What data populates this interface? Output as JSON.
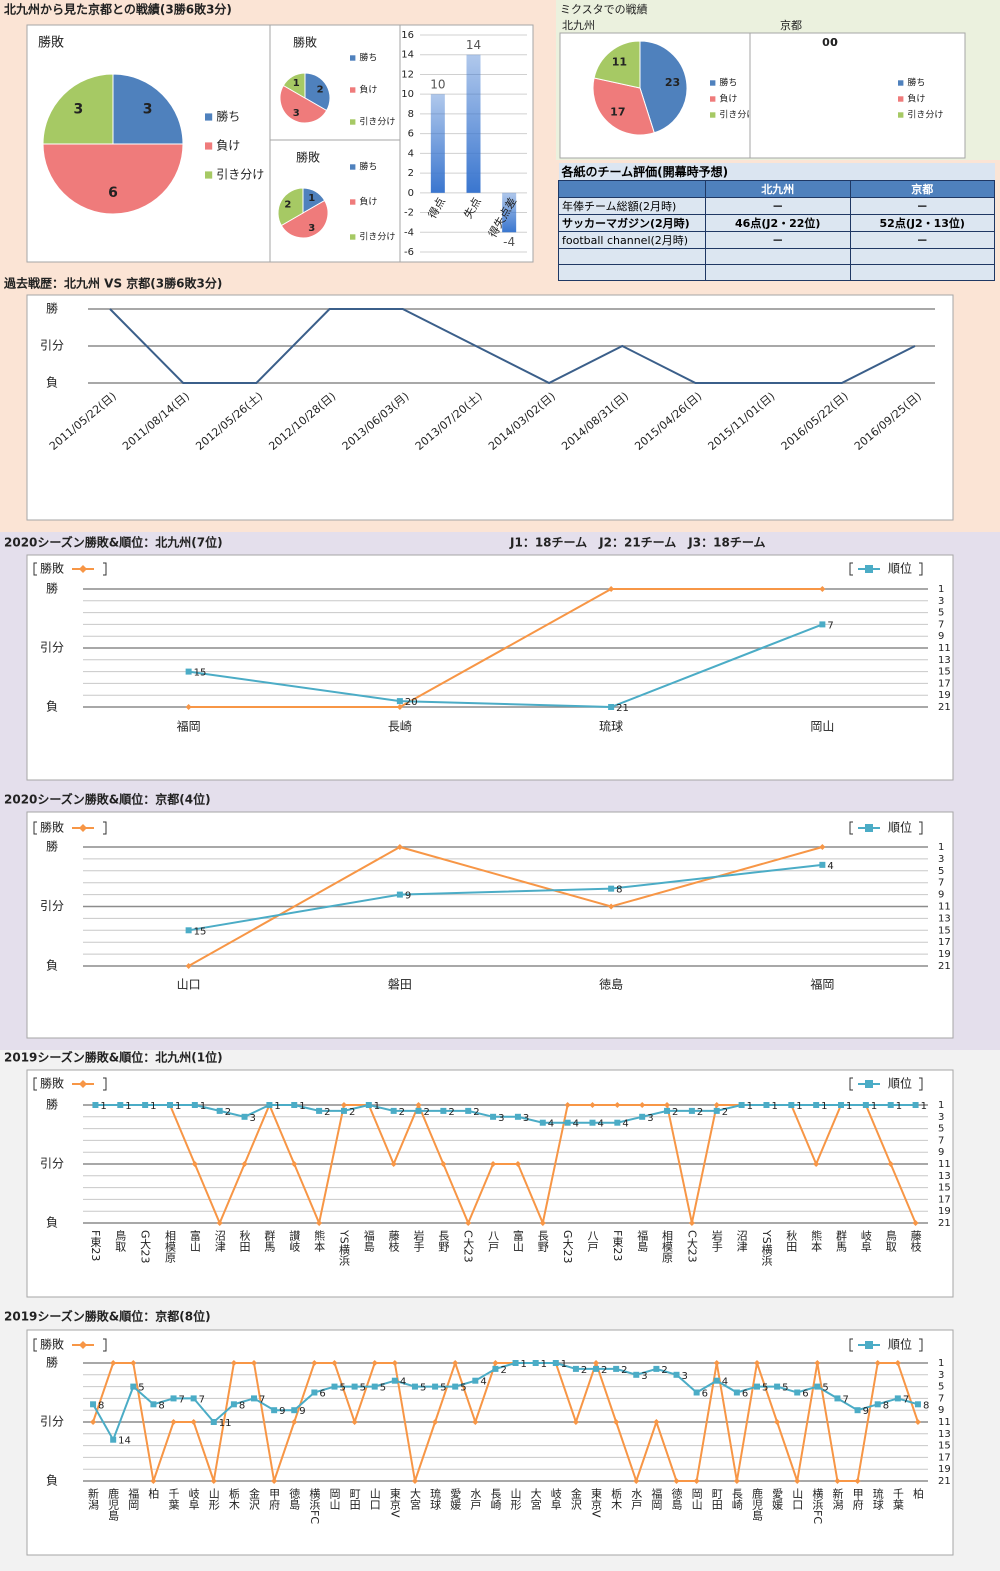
{
  "headings": {
    "record_title": "北九州から見た京都との戦績(3勝6敗3分)",
    "mixta_title": "ミクスタでの戦績",
    "mixta_home": "北九州",
    "mixta_away": "京都"
  },
  "table": {
    "title": "各紙のチーム評価(開幕時予想)",
    "columns": [
      "北九州",
      "京都"
    ],
    "rows": [
      {
        "label": "年俸チーム総額(2月時)",
        "cells": [
          "－",
          "－"
        ]
      },
      {
        "label": "サッカーマガジン(2月時)",
        "cells": [
          "46点(J2・22位)",
          "52点(J2・13位)"
        ]
      },
      {
        "label": "football channel(2月時)",
        "cells": [
          "－",
          "－"
        ]
      }
    ]
  },
  "chart_data": [
    {
      "type": "pie",
      "title": "勝敗",
      "categories": [
        "勝ち",
        "負け",
        "引き分け"
      ],
      "values": [
        3,
        6,
        3
      ],
      "colors": [
        "#4f81bd",
        "#ef7b7b",
        "#a6c964"
      ]
    },
    {
      "type": "pie",
      "title": "勝敗",
      "categories": [
        "勝ち",
        "負け",
        "引き分け"
      ],
      "values": [
        2,
        3,
        1
      ],
      "colors": [
        "#4f81bd",
        "#ef7b7b",
        "#a6c964"
      ]
    },
    {
      "type": "pie",
      "title": "勝敗",
      "categories": [
        "勝ち",
        "負け",
        "引き分け"
      ],
      "values": [
        1,
        3,
        2
      ],
      "colors": [
        "#4f81bd",
        "#ef7b7b",
        "#a6c964"
      ]
    },
    {
      "type": "bar",
      "categories": [
        "得点",
        "失点",
        "得失点差"
      ],
      "values": [
        10,
        14,
        -4
      ],
      "color": "#3a76cf",
      "ylim": [
        -6,
        16
      ],
      "yticks": [
        -6,
        -4,
        -2,
        0,
        2,
        4,
        6,
        8,
        10,
        12,
        14,
        16
      ],
      "grid": true
    },
    {
      "type": "pie",
      "categories": [
        "勝ち",
        "負け",
        "引き分け"
      ],
      "values": [
        23,
        17,
        11
      ],
      "colors": [
        "#4f81bd",
        "#ef7b7b",
        "#a6c964"
      ]
    },
    {
      "type": "pie",
      "categories": [
        "勝ち",
        "負け",
        "引き分け"
      ],
      "values": [
        0,
        0,
        0
      ],
      "colors": [
        "#4f81bd",
        "#ef7b7b",
        "#a6c964"
      ]
    },
    {
      "type": "line",
      "title": "過去戦歴：北九州 VS 京都(3勝6敗3分)",
      "categories": [
        "2011/05/22(日)",
        "2011/08/14(日)",
        "2012/05/26(土)",
        "2012/10/28(日)",
        "2013/06/03(月)",
        "2013/07/20(土)",
        "2014/03/02(日)",
        "2014/08/31(日)",
        "2015/04/26(日)",
        "2015/11/01(日)",
        "2016/05/22(日)",
        "2016/09/25(日)"
      ],
      "values": [
        1,
        -1,
        -1,
        1,
        1,
        0,
        -1,
        0,
        -1,
        -1,
        -1,
        0
      ],
      "color": "#3b5f8a",
      "ylim": [
        -1,
        1
      ],
      "yticks": [
        {
          "value": -1,
          "label": "負"
        },
        {
          "value": 0,
          "label": "引分"
        },
        {
          "value": 1,
          "label": "勝"
        }
      ],
      "grid": true
    },
    {
      "type": "line",
      "title": "2020シーズン勝敗&順位：北九州(7位)",
      "annotation": "J1：18チーム　J2：21チーム　J3：18チーム",
      "categories": [
        "福岡",
        "長崎",
        "琉球",
        "岡山"
      ],
      "series": [
        {
          "name": "勝敗",
          "color": "#f79646",
          "marker": "diamond",
          "values": [
            -1,
            -1,
            1,
            1
          ]
        },
        {
          "name": "順位",
          "color": "#4bacc6",
          "marker": "square",
          "axis": "y2",
          "show_labels": true,
          "values": [
            15,
            20,
            21,
            7
          ]
        }
      ],
      "ylim": [
        -1,
        1
      ],
      "yticks": [
        {
          "value": -1,
          "label": "負"
        },
        {
          "value": 0,
          "label": "引分"
        },
        {
          "value": 1,
          "label": "勝"
        }
      ],
      "y2lim": [
        1,
        21
      ],
      "y2_inverted": true,
      "y2ticks": [
        1,
        3,
        5,
        7,
        9,
        11,
        13,
        15,
        17,
        19,
        21
      ],
      "grid": true
    },
    {
      "type": "line",
      "title": "2020シーズン勝敗&順位：京都(4位)",
      "categories": [
        "山口",
        "磐田",
        "徳島",
        "福岡"
      ],
      "series": [
        {
          "name": "勝敗",
          "color": "#f79646",
          "marker": "diamond",
          "values": [
            -1,
            1,
            0,
            1
          ]
        },
        {
          "name": "順位",
          "color": "#4bacc6",
          "marker": "square",
          "axis": "y2",
          "show_labels": true,
          "values": [
            15,
            9,
            8,
            4
          ]
        }
      ],
      "ylim": [
        -1,
        1
      ],
      "yticks": [
        {
          "value": -1,
          "label": "負"
        },
        {
          "value": 0,
          "label": "引分"
        },
        {
          "value": 1,
          "label": "勝"
        }
      ],
      "y2lim": [
        1,
        21
      ],
      "y2_inverted": true,
      "y2ticks": [
        1,
        3,
        5,
        7,
        9,
        11,
        13,
        15,
        17,
        19,
        21
      ],
      "grid": true
    },
    {
      "type": "line",
      "title": "2019シーズン勝敗&順位：北九州(1位)",
      "categories": [
        "F東23",
        "鳥取",
        "G大23",
        "相模原",
        "富山",
        "沼津",
        "秋田",
        "群馬",
        "讃岐",
        "熊本",
        "YS横浜",
        "福島",
        "藤枝",
        "岩手",
        "長野",
        "C大23",
        "八戸",
        "富山",
        "長野",
        "G大23",
        "八戸",
        "F東23",
        "福島",
        "相模原",
        "C大23",
        "岩手",
        "沼津",
        "YS横浜",
        "秋田",
        "熊本",
        "群馬",
        "岐阜",
        "鳥取",
        "藤枝"
      ],
      "series": [
        {
          "name": "勝敗",
          "color": "#f79646",
          "marker": "diamond",
          "values": [
            1,
            1,
            1,
            1,
            0,
            -1,
            0,
            1,
            0,
            -1,
            1,
            1,
            0,
            1,
            0,
            -1,
            0,
            0,
            -1,
            1,
            1,
            1,
            1,
            1,
            -1,
            1,
            1,
            1,
            1,
            0,
            1,
            1,
            0,
            -1
          ]
        },
        {
          "name": "順位",
          "color": "#4bacc6",
          "marker": "square",
          "axis": "y2",
          "show_labels": true,
          "values": [
            1,
            1,
            1,
            1,
            1,
            2,
            3,
            1,
            1,
            2,
            2,
            1,
            2,
            2,
            2,
            2,
            3,
            3,
            4,
            4,
            4,
            4,
            3,
            2,
            2,
            2,
            1,
            1,
            1,
            1,
            1,
            1,
            1,
            1
          ]
        }
      ],
      "ylim": [
        -1,
        1
      ],
      "yticks": [
        {
          "value": -1,
          "label": "負"
        },
        {
          "value": 0,
          "label": "引分"
        },
        {
          "value": 1,
          "label": "勝"
        }
      ],
      "y2lim": [
        1,
        21
      ],
      "y2_inverted": true,
      "y2ticks": [
        1,
        3,
        5,
        7,
        9,
        11,
        13,
        15,
        17,
        19,
        21
      ],
      "grid": true
    },
    {
      "type": "line",
      "title": "2019シーズン勝敗&順位：京都(8位)",
      "categories": [
        "新潟",
        "鹿児島",
        "福岡",
        "柏",
        "千葉",
        "岐阜",
        "山形",
        "栃木",
        "金沢",
        "甲府",
        "徳島",
        "横浜FC",
        "岡山",
        "町田",
        "山口",
        "東京V",
        "大宮",
        "琉球",
        "愛媛",
        "水戸",
        "長崎",
        "山形",
        "大宮",
        "岐阜",
        "金沢",
        "東京V",
        "栃木",
        "水戸",
        "福岡",
        "徳島",
        "岡山",
        "町田",
        "長崎",
        "鹿児島",
        "愛媛",
        "山口",
        "横浜FC",
        "新潟",
        "甲府",
        "琉球",
        "千葉",
        "柏"
      ],
      "series": [
        {
          "name": "勝敗",
          "color": "#f79646",
          "marker": "diamond",
          "values": [
            0,
            1,
            1,
            -1,
            0,
            0,
            -1,
            1,
            1,
            -1,
            0,
            1,
            1,
            0,
            1,
            1,
            -1,
            0,
            1,
            0,
            1,
            1,
            1,
            1,
            0,
            1,
            0,
            -1,
            0,
            -1,
            -1,
            1,
            -1,
            1,
            0,
            -1,
            1,
            -1,
            -1,
            1,
            1,
            0
          ]
        },
        {
          "name": "順位",
          "color": "#4bacc6",
          "marker": "square",
          "axis": "y2",
          "show_labels": true,
          "values": [
            8,
            14,
            5,
            8,
            7,
            7,
            11,
            8,
            7,
            9,
            9,
            6,
            5,
            5,
            5,
            4,
            5,
            5,
            5,
            4,
            2,
            1,
            1,
            1,
            2,
            2,
            2,
            3,
            2,
            3,
            6,
            4,
            6,
            5,
            5,
            6,
            5,
            7,
            9,
            8,
            7,
            8
          ]
        }
      ],
      "ylim": [
        -1,
        1
      ],
      "yticks": [
        {
          "value": -1,
          "label": "負"
        },
        {
          "value": 0,
          "label": "引分"
        },
        {
          "value": 1,
          "label": "勝"
        }
      ],
      "y2lim": [
        1,
        21
      ],
      "y2_inverted": true,
      "y2ticks": [
        1,
        3,
        5,
        7,
        9,
        11,
        13,
        15,
        17,
        19,
        21
      ],
      "grid": true
    }
  ]
}
